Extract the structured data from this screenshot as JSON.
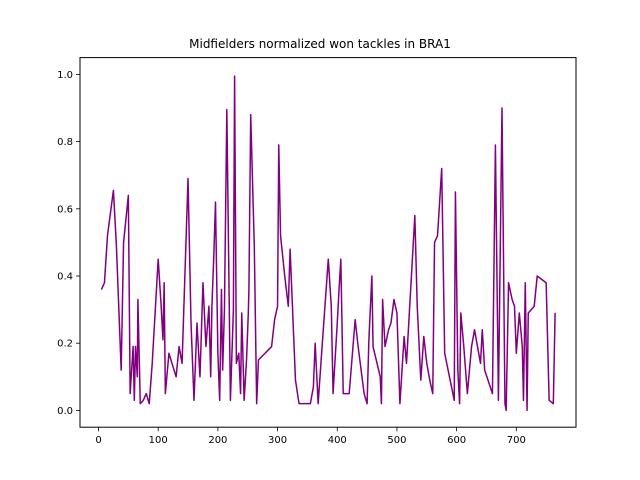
{
  "chart_data": {
    "type": "line",
    "title": "Midfielders normalized won tackles in BRA1",
    "xlabel": "",
    "ylabel": "",
    "xlim": [
      -31,
      800
    ],
    "ylim": [
      -0.05,
      1.05
    ],
    "xticks": [
      0,
      100,
      200,
      300,
      400,
      500,
      600,
      700
    ],
    "yticks": [
      0.0,
      0.2,
      0.4,
      0.6,
      0.8,
      1.0
    ],
    "xtick_labels": [
      "0",
      "100",
      "200",
      "300",
      "400",
      "500",
      "600",
      "700"
    ],
    "ytick_labels": [
      "0.0",
      "0.2",
      "0.4",
      "0.6",
      "0.8",
      "1.0"
    ],
    "grid": false,
    "legend": "none",
    "series": [
      {
        "color": "#800080",
        "points": [
          [
            5,
            0.36
          ],
          [
            10,
            0.38
          ],
          [
            15,
            0.52
          ],
          [
            25,
            0.655
          ],
          [
            30,
            0.49
          ],
          [
            38,
            0.12
          ],
          [
            42,
            0.5
          ],
          [
            50,
            0.64
          ],
          [
            53,
            0.05
          ],
          [
            58,
            0.19
          ],
          [
            60,
            0.03
          ],
          [
            62,
            0.19
          ],
          [
            65,
            0.1
          ],
          [
            66,
            0.33
          ],
          [
            70,
            0.02
          ],
          [
            75,
            0.03
          ],
          [
            80,
            0.05
          ],
          [
            85,
            0.02
          ],
          [
            90,
            0.14
          ],
          [
            100,
            0.45
          ],
          [
            105,
            0.31
          ],
          [
            108,
            0.21
          ],
          [
            110,
            0.38
          ],
          [
            112,
            0.05
          ],
          [
            118,
            0.17
          ],
          [
            130,
            0.1
          ],
          [
            135,
            0.19
          ],
          [
            140,
            0.14
          ],
          [
            150,
            0.69
          ],
          [
            155,
            0.26
          ],
          [
            160,
            0.03
          ],
          [
            165,
            0.26
          ],
          [
            170,
            0.1
          ],
          [
            175,
            0.38
          ],
          [
            180,
            0.19
          ],
          [
            185,
            0.31
          ],
          [
            188,
            0.1
          ],
          [
            190,
            0.31
          ],
          [
            193,
            0.45
          ],
          [
            196,
            0.62
          ],
          [
            200,
            0.17
          ],
          [
            203,
            0.03
          ],
          [
            206,
            0.36
          ],
          [
            208,
            0.12
          ],
          [
            211,
            0.3
          ],
          [
            215,
            0.895
          ],
          [
            221,
            0.03
          ],
          [
            226,
            0.3
          ],
          [
            228,
            0.995
          ],
          [
            231,
            0.14
          ],
          [
            235,
            0.17
          ],
          [
            238,
            0.05
          ],
          [
            240,
            0.29
          ],
          [
            244,
            0.03
          ],
          [
            248,
            0.15
          ],
          [
            251,
            0.29
          ],
          [
            252,
            0.36
          ],
          [
            255,
            0.88
          ],
          [
            261,
            0.49
          ],
          [
            265,
            0.02
          ],
          [
            268,
            0.15
          ],
          [
            290,
            0.19
          ],
          [
            295,
            0.27
          ],
          [
            300,
            0.31
          ],
          [
            302,
            0.79
          ],
          [
            305,
            0.52
          ],
          [
            312,
            0.4
          ],
          [
            318,
            0.31
          ],
          [
            321,
            0.48
          ],
          [
            330,
            0.09
          ],
          [
            336,
            0.02
          ],
          [
            355,
            0.02
          ],
          [
            360,
            0.07
          ],
          [
            363,
            0.2
          ],
          [
            368,
            0.02
          ],
          [
            373,
            0.15
          ],
          [
            385,
            0.45
          ],
          [
            390,
            0.31
          ],
          [
            393,
            0.05
          ],
          [
            400,
            0.26
          ],
          [
            403,
            0.36
          ],
          [
            406,
            0.45
          ],
          [
            410,
            0.05
          ],
          [
            420,
            0.05
          ],
          [
            430,
            0.27
          ],
          [
            435,
            0.19
          ],
          [
            445,
            0.05
          ],
          [
            450,
            0.02
          ],
          [
            453,
            0.21
          ],
          [
            458,
            0.4
          ],
          [
            460,
            0.19
          ],
          [
            472,
            0.1
          ],
          [
            474,
            0.02
          ],
          [
            476,
            0.33
          ],
          [
            480,
            0.19
          ],
          [
            486,
            0.24
          ],
          [
            490,
            0.26
          ],
          [
            495,
            0.33
          ],
          [
            500,
            0.29
          ],
          [
            505,
            0.02
          ],
          [
            512,
            0.22
          ],
          [
            516,
            0.14
          ],
          [
            530,
            0.58
          ],
          [
            534,
            0.31
          ],
          [
            540,
            0.09
          ],
          [
            545,
            0.22
          ],
          [
            550,
            0.14
          ],
          [
            555,
            0.09
          ],
          [
            560,
            0.05
          ],
          [
            563,
            0.5
          ],
          [
            568,
            0.52
          ],
          [
            575,
            0.72
          ],
          [
            580,
            0.17
          ],
          [
            596,
            0.03
          ],
          [
            598,
            0.65
          ],
          [
            602,
            0.12
          ],
          [
            605,
            0.02
          ],
          [
            607,
            0.29
          ],
          [
            612,
            0.19
          ],
          [
            618,
            0.05
          ],
          [
            625,
            0.19
          ],
          [
            630,
            0.24
          ],
          [
            635,
            0.19
          ],
          [
            640,
            0.14
          ],
          [
            643,
            0.24
          ],
          [
            647,
            0.12
          ],
          [
            660,
            0.05
          ],
          [
            665,
            0.79
          ],
          [
            670,
            0.03
          ],
          [
            676,
            0.9
          ],
          [
            681,
            0.02
          ],
          [
            683,
            0.0
          ],
          [
            687,
            0.38
          ],
          [
            693,
            0.33
          ],
          [
            697,
            0.31
          ],
          [
            700,
            0.17
          ],
          [
            705,
            0.29
          ],
          [
            710,
            0.19
          ],
          [
            712,
            0.03
          ],
          [
            715,
            0.38
          ],
          [
            718,
            0.0
          ],
          [
            720,
            0.29
          ],
          [
            730,
            0.31
          ],
          [
            735,
            0.4
          ],
          [
            750,
            0.38
          ],
          [
            755,
            0.03
          ],
          [
            762,
            0.02
          ],
          [
            765,
            0.29
          ]
        ]
      }
    ]
  }
}
